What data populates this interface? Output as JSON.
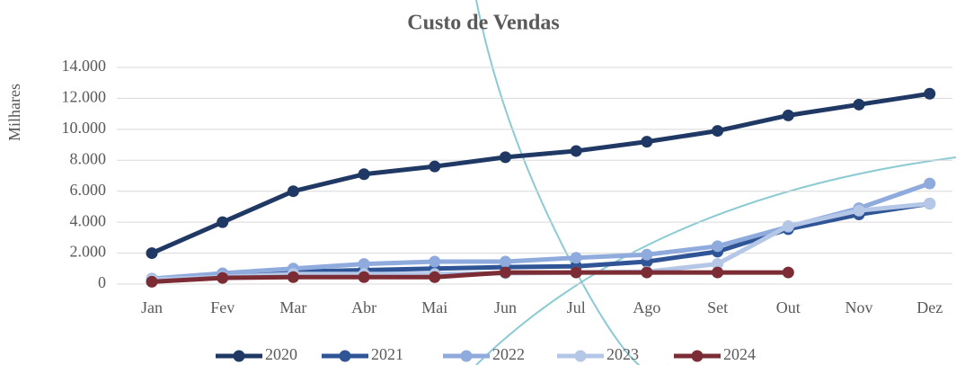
{
  "chart_data": {
    "type": "line",
    "title": "Custo de Vendas",
    "y_label": "Milhares",
    "categories": [
      "Jan",
      "Fev",
      "Mar",
      "Abr",
      "Mai",
      "Jun",
      "Jul",
      "Ago",
      "Set",
      "Out",
      "Nov",
      "Dez"
    ],
    "series": [
      {
        "name": "2020",
        "color": "#1f3864",
        "values": [
          2000,
          4000,
          6000,
          7100,
          7600,
          8200,
          8600,
          9200,
          9900,
          10900,
          11600,
          12300
        ]
      },
      {
        "name": "2021",
        "color": "#2f5597",
        "values": [
          300,
          650,
          800,
          900,
          1000,
          1100,
          1150,
          1450,
          2100,
          3550,
          4500,
          5200
        ]
      },
      {
        "name": "2022",
        "color": "#8faadc",
        "values": [
          350,
          700,
          1000,
          1300,
          1450,
          1450,
          1700,
          1900,
          2450,
          3700,
          4900,
          6500
        ]
      },
      {
        "name": "2023",
        "color": "#b4c7e7",
        "values": [
          300,
          450,
          650,
          650,
          650,
          700,
          750,
          800,
          1300,
          3750,
          4750,
          5200
        ]
      },
      {
        "name": "2024",
        "color": "#7b2c34",
        "values": [
          150,
          400,
          450,
          450,
          450,
          750,
          750,
          750,
          750,
          750,
          null,
          null
        ]
      }
    ],
    "ylim": [
      0,
      14000
    ],
    "yticks": [
      0,
      {
        "value": 2000,
        "label": "2.000"
      },
      {
        "value": 4000,
        "label": "4.000"
      },
      {
        "value": 6000,
        "label": "6.000"
      },
      {
        "value": 8000,
        "label": "8.000"
      },
      {
        "value": 10000,
        "label": "10.000"
      },
      {
        "value": 12000,
        "label": "12.000"
      },
      {
        "value": 14000,
        "label": "14.000"
      }
    ],
    "grid": true,
    "legend": "bottom"
  }
}
